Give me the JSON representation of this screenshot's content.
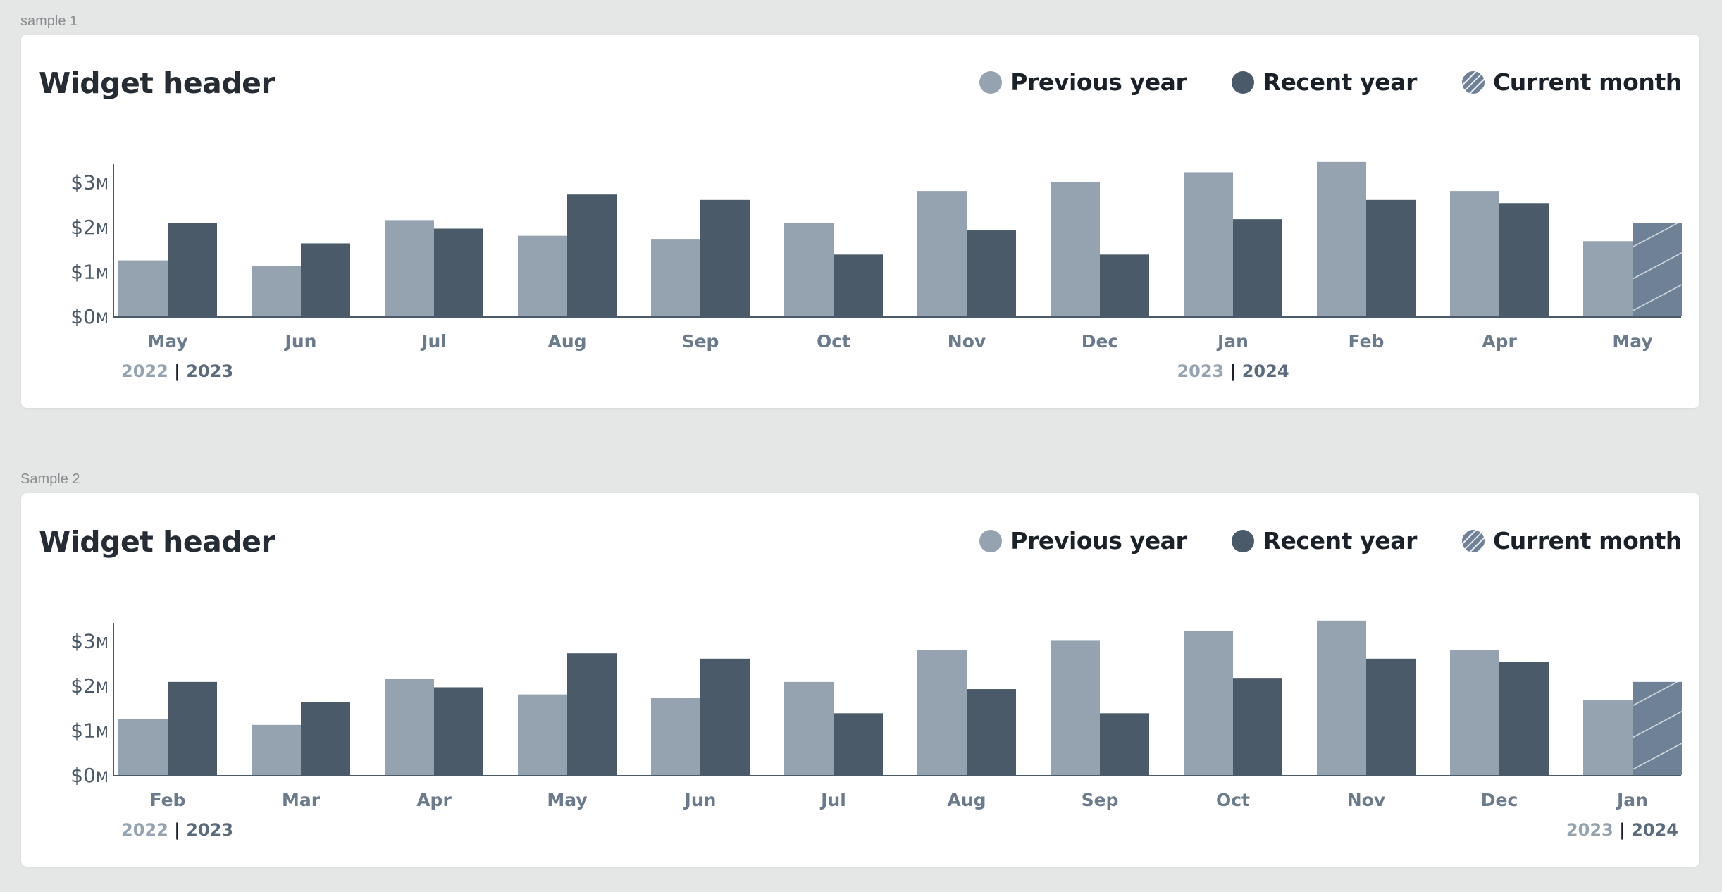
{
  "colors": {
    "previous": "#95a3b0",
    "recent": "#4b5a68",
    "current_month": "#6f8196",
    "axis": "#4b5a68"
  },
  "legend": [
    {
      "label": "Previous year",
      "style": "previous"
    },
    {
      "label": "Recent year",
      "style": "recent"
    },
    {
      "label": "Current month",
      "style": "hatched"
    }
  ],
  "samples": [
    {
      "label": "sample 1",
      "title": "Widget header"
    },
    {
      "label": "Sample 2",
      "title": "Widget header"
    }
  ],
  "chart_data": [
    {
      "type": "bar",
      "title": "Widget header",
      "categories": [
        "May",
        "Jun",
        "Jul",
        "Aug",
        "Sep",
        "Oct",
        "Nov",
        "Dec",
        "Jan",
        "Feb",
        "Apr",
        "May"
      ],
      "series": [
        {
          "name": "Previous year",
          "values": [
            1.25,
            1.12,
            2.15,
            1.8,
            1.73,
            2.08,
            2.8,
            3.0,
            3.22,
            3.45,
            2.8,
            1.68
          ]
        },
        {
          "name": "Recent year",
          "values": [
            2.08,
            1.63,
            1.96,
            2.72,
            2.6,
            1.38,
            1.92,
            1.38,
            2.17,
            2.6,
            2.53,
            2.08
          ]
        }
      ],
      "current_month_index": 11,
      "y_ticks": [
        {
          "value": 0,
          "label": "$0",
          "unit": "M"
        },
        {
          "value": 1,
          "label": "$1",
          "unit": "M"
        },
        {
          "value": 2,
          "label": "$2",
          "unit": "M"
        },
        {
          "value": 3,
          "label": "$3",
          "unit": "M"
        }
      ],
      "ylim": [
        0,
        3.4
      ],
      "year_labels": [
        {
          "at_index": 0,
          "prev": "2022",
          "sep": "|",
          "recent": "2023",
          "align": "start"
        },
        {
          "at_index": 8,
          "prev": "2023",
          "sep": "|",
          "recent": "2024",
          "align": "middle"
        }
      ],
      "grid": false,
      "legend_position": "top-right"
    },
    {
      "type": "bar",
      "title": "Widget header",
      "categories": [
        "Feb",
        "Mar",
        "Apr",
        "May",
        "Jun",
        "Jul",
        "Aug",
        "Sep",
        "Oct",
        "Nov",
        "Dec",
        "Jan"
      ],
      "series": [
        {
          "name": "Previous year",
          "values": [
            1.25,
            1.12,
            2.15,
            1.8,
            1.73,
            2.08,
            2.8,
            3.0,
            3.22,
            3.45,
            2.8,
            1.68
          ]
        },
        {
          "name": "Recent year",
          "values": [
            2.08,
            1.63,
            1.96,
            2.72,
            2.6,
            1.38,
            1.92,
            1.38,
            2.17,
            2.6,
            2.53,
            2.08
          ]
        }
      ],
      "current_month_index": 11,
      "y_ticks": [
        {
          "value": 0,
          "label": "$0",
          "unit": "M"
        },
        {
          "value": 1,
          "label": "$1",
          "unit": "M"
        },
        {
          "value": 2,
          "label": "$2",
          "unit": "M"
        },
        {
          "value": 3,
          "label": "$3",
          "unit": "M"
        }
      ],
      "ylim": [
        0,
        3.4
      ],
      "year_labels": [
        {
          "at_index": 0,
          "prev": "2022",
          "sep": "|",
          "recent": "2023",
          "align": "start"
        },
        {
          "at_index": 11,
          "prev": "2023",
          "sep": "|",
          "recent": "2024",
          "align": "end"
        }
      ],
      "grid": false,
      "legend_position": "top-right"
    }
  ]
}
